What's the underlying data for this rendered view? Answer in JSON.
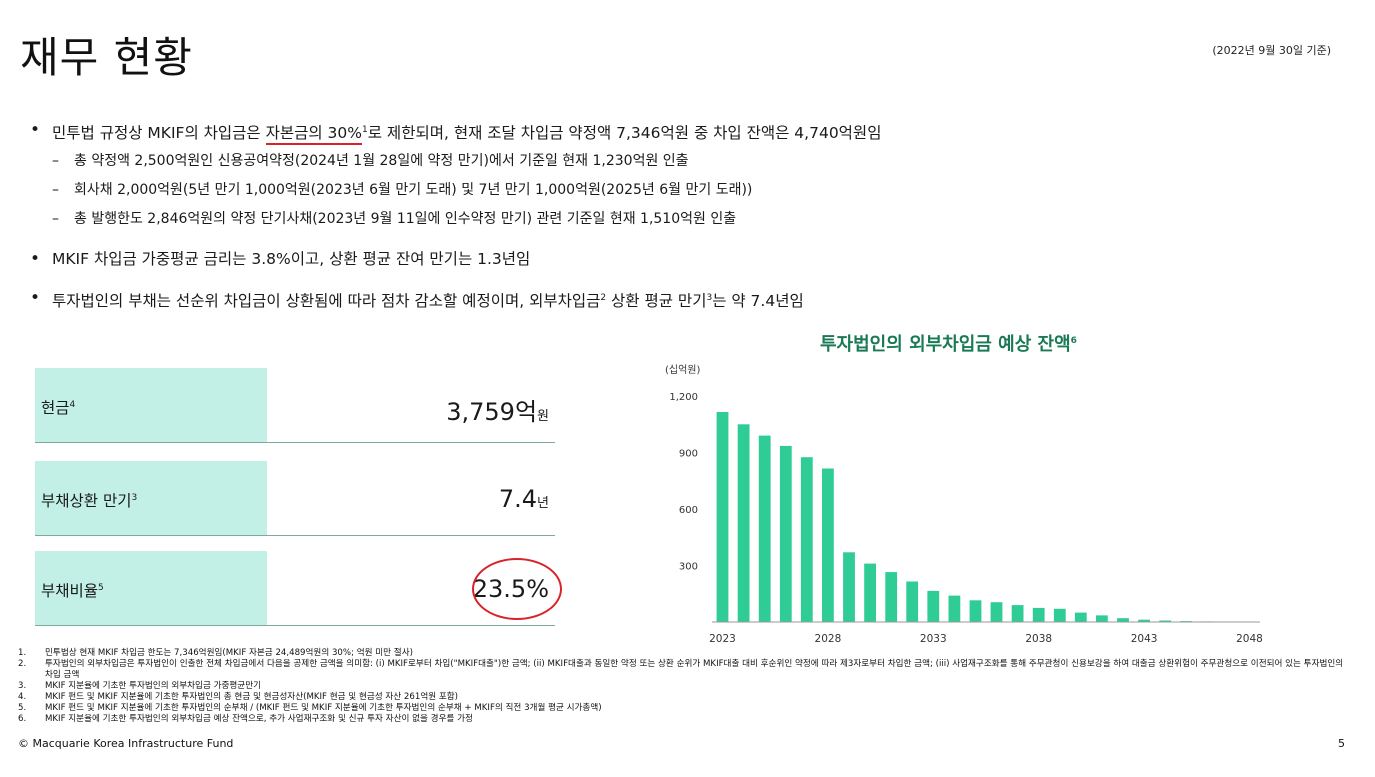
{
  "header": {
    "title": "재무 현황",
    "as_of": "(2022년 9월 30일 기준)"
  },
  "bullets": {
    "b1": {
      "pre": "민투법 규정상 MKIF의 차입금은 ",
      "highlight": "자본금의 30%",
      "note": "1",
      "post": "로 제한되며, 현재 조달 차입금 약정액 7,346억원 중 차입 잔액은 4,740억원임"
    },
    "sub": [
      "총 약정액 2,500억원인 신용공여약정(2024년 1월 28일에 약정 만기)에서 기준일 현재 1,230억원 인출",
      "회사채 2,000억원(5년 만기 1,000억원(2023년 6월 만기 도래) 및 7년 만기 1,000억원(2025년 6월 만기 도래))",
      "총 발행한도 2,846억원의 약정 단기사채(2023년 9월 11일에 인수약정 만기) 관련 기준일 현재 1,510억원 인출"
    ],
    "b2": "MKIF 차입금 가중평균 금리는 3.8%이고, 상환 평균 잔여 만기는 1.3년임",
    "b3": {
      "pre": "투자법인의 부채는 선순위 차입금이 상환됨에 따라 점차 감소할 예정이며, 외부차입금",
      "note1": "2",
      "mid": " 상환 평균 만기",
      "note2": "3",
      "post": "는 약 7.4년임"
    }
  },
  "kpis": [
    {
      "label": "현금",
      "note": "4",
      "value": "3,759억",
      "unit": "원"
    },
    {
      "label": "부채상환 만기",
      "note": "3",
      "value": "7.4",
      "unit": "년"
    },
    {
      "label": "부채비율",
      "note": "5",
      "value": "23.5%",
      "unit": ""
    }
  ],
  "chart_data": {
    "type": "bar",
    "title": "투자법인의 외부차입금 예상 잔액",
    "title_note": "6",
    "ylabel": "(십억원)",
    "ylim": [
      0,
      1200
    ],
    "yticks": [
      300,
      600,
      900,
      1200
    ],
    "ytick_labels": [
      "300",
      "600",
      "900",
      "1,200"
    ],
    "xtick_labels": [
      "2023",
      "2028",
      "2033",
      "2038",
      "2043",
      "2048"
    ],
    "categories": [
      "2023",
      "2024",
      "2025",
      "2026",
      "2027",
      "2028",
      "2029",
      "2030",
      "2031",
      "2032",
      "2033",
      "2034",
      "2035",
      "2036",
      "2037",
      "2038",
      "2039",
      "2040",
      "2041",
      "2042",
      "2043",
      "2044",
      "2045",
      "2046",
      "2047",
      "2048"
    ],
    "values": [
      1115,
      1050,
      990,
      935,
      875,
      815,
      370,
      310,
      265,
      215,
      165,
      140,
      115,
      105,
      90,
      75,
      70,
      50,
      35,
      20,
      12,
      8,
      5,
      3,
      2,
      1
    ],
    "grid": false,
    "bar_color": "#2fcc95"
  },
  "footnotes": [
    {
      "num": "1.",
      "text": "민투법상 현재 MKIF 차입금 한도는 7,346억원임(MKIF 자본금 24,489억원의 30%; 억원 미만 절사)"
    },
    {
      "num": "2.",
      "text": "투자법인의 외부차입금은 투자법인이 인출한 전체 차입금에서 다음을 공제한 금액을 의미함: (i) MKIF로부터 차입(\"MKIF대출\")한 금액; (ii) MKIF대출과 동일한 약정 또는 상환 순위가 MKIF대출 대비 후순위인 약정에 따라 제3자로부터 차입한 금액; (iii) 사업재구조화를 통해 주무관청이 신용보강을 하여 대출금 상환위험이 주무관청으로 이전되어 있는 투자법인의 차입 금액"
    },
    {
      "num": "3.",
      "text": "MKIF 지분율에 기초한 투자법인의 외부차입금 가중평균만기"
    },
    {
      "num": "4.",
      "text": "MKIF 펀드 및 MKIF 지분율에 기초한 투자법인의 총 현금 및 현금성자산(MKIF 현금 및 현금성 자산 261억원 포함)"
    },
    {
      "num": "5.",
      "text": "MKIF 펀드 및 MKIF 지분율에 기초한 투자법인의 순부채 / (MKIF 펀드 및 MKIF 지분율에 기초한 투자법인의 순부채 + MKIF의 직전 3개월 평균 시가총액)"
    },
    {
      "num": "6.",
      "text": "MKIF 지분율에 기초한 투자법인의 외부차입금 예상 잔액으로, 추가 사업재구조화 및 신규 투자 자산이 없을 경우를 가정"
    }
  ],
  "footer": {
    "copyright": "© Macquarie Korea Infrastructure Fund",
    "page": "5"
  }
}
